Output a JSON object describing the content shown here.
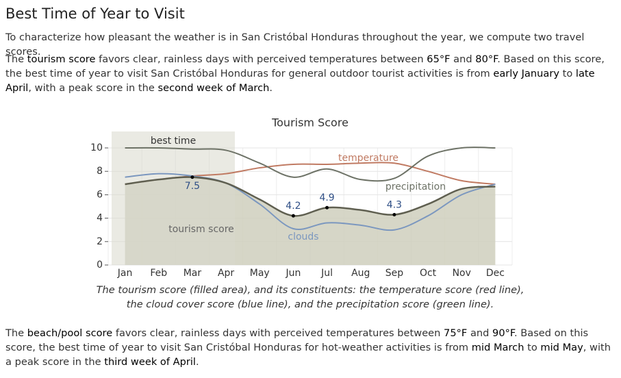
{
  "header": {
    "title": "Best Time of Year to Visit"
  },
  "paragraphs": [
    [
      "To characterize how pleasant the weather is in San Cristóbal Honduras throughout the year, we compute two travel scores."
    ],
    [
      "The ",
      "tourism score",
      " favors clear, rainless days with perceived temperatures between ",
      "65°F",
      " and ",
      "80°F",
      ". Based on this score, the best time of year to visit San Cristóbal Honduras for general outdoor tourist activities is from ",
      "early January",
      " to ",
      "late April",
      ", with a peak score in the ",
      "second week of March",
      "."
    ]
  ],
  "chart_data": {
    "type": "line",
    "title": "Tourism Score",
    "band_label": "best time",
    "categories": [
      "Jan",
      "Feb",
      "Mar",
      "Apr",
      "May",
      "Jun",
      "Jul",
      "Aug",
      "Sep",
      "Oct",
      "Nov",
      "Dec"
    ],
    "ylim": [
      0,
      10
    ],
    "yticks": [
      0,
      2,
      4,
      6,
      8,
      10
    ],
    "grid": true,
    "area": {
      "name": "tourism score",
      "color": "#5f5f50",
      "fill": "#cfcfbd",
      "values": [
        6.9,
        7.3,
        7.5,
        7.0,
        5.6,
        4.2,
        4.9,
        4.7,
        4.3,
        5.2,
        6.5,
        6.7
      ],
      "value_labels": [
        null,
        null,
        "7.5",
        null,
        null,
        "4.2",
        "4.9",
        null,
        "4.3",
        null,
        null,
        null
      ]
    },
    "series": [
      {
        "name": "temperature",
        "color": "#c07a62",
        "values": [
          6.9,
          7.3,
          7.6,
          7.8,
          8.3,
          8.6,
          8.6,
          8.7,
          8.7,
          8.0,
          7.2,
          6.9
        ]
      },
      {
        "name": "precipitation",
        "color": "#6d7266",
        "values": [
          10,
          10,
          9.9,
          9.8,
          8.7,
          7.5,
          8.2,
          7.3,
          7.4,
          9.3,
          10,
          10
        ]
      },
      {
        "name": "clouds",
        "color": "#7b97bf",
        "values": [
          7.5,
          7.8,
          7.6,
          7.0,
          5.2,
          3.1,
          3.6,
          3.4,
          3.0,
          4.2,
          6.0,
          6.9
        ]
      }
    ]
  },
  "caption": [
    "The ",
    "tourism score",
    " (filled area), and its constituents: the temperature score (red line), the cloud cover score (blue line), and the precipitation score (green line)."
  ],
  "paragraph3": [
    "The ",
    "beach/pool score",
    " favors clear, rainless days with perceived temperatures between ",
    "75°F",
    " and ",
    "90°F",
    ". Based on this score, the best time of year to visit San Cristóbal Honduras for hot-weather activities is from ",
    "mid March",
    " to ",
    "mid May",
    ", with a peak score in the ",
    "third week of April",
    "."
  ]
}
